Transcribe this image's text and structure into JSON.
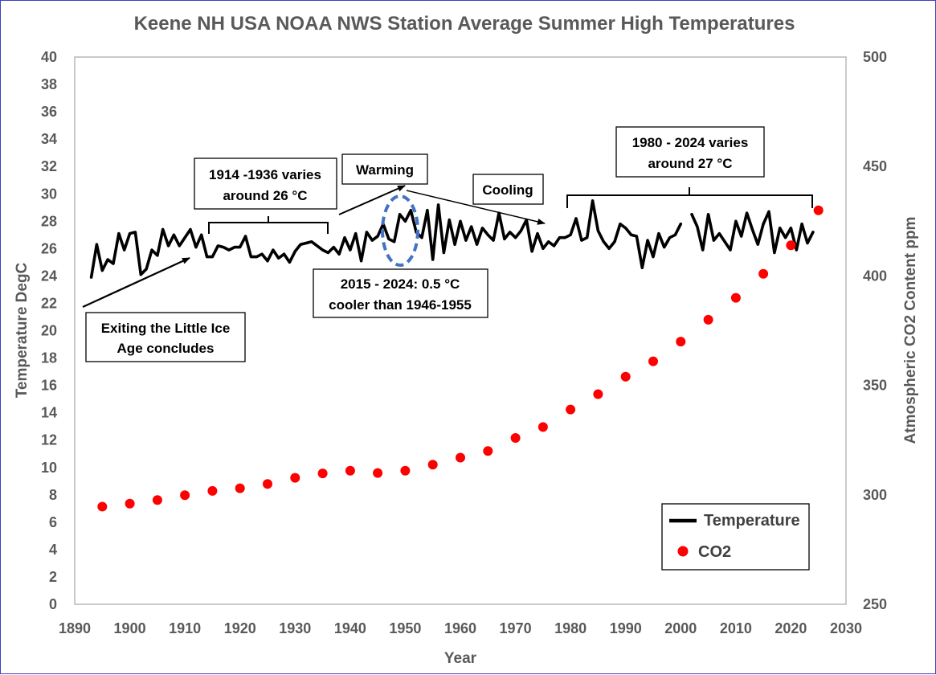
{
  "chart_data": {
    "type": "line+scatter",
    "title": "Keene NH USA NOAA NWS Station Average Summer High Temperatures",
    "xlabel": "Year",
    "ylabel_left": "Temperature DegC",
    "ylabel_right": "Atmospheric CO2 Content ppm",
    "xlim": [
      1890,
      2030
    ],
    "ylim_left": [
      0,
      40
    ],
    "ylim_right": [
      250,
      500
    ],
    "x_ticks": [
      "1890",
      "1900",
      "1910",
      "1920",
      "1930",
      "1940",
      "1950",
      "1960",
      "1970",
      "1980",
      "1990",
      "2000",
      "2010",
      "2020",
      "2030"
    ],
    "y_left_ticks": [
      "0",
      "2",
      "4",
      "6",
      "8",
      "10",
      "12",
      "14",
      "16",
      "18",
      "20",
      "22",
      "24",
      "26",
      "28",
      "30",
      "32",
      "34",
      "36",
      "38",
      "40"
    ],
    "y_right_ticks": [
      "250",
      "300",
      "350",
      "400",
      "450",
      "500"
    ],
    "legend": {
      "temperature_label": "Temperature",
      "co2_label": "CO2",
      "position": "bottom-right"
    },
    "colors": {
      "temperature": "#000000",
      "co2": "#ff0000",
      "axis_text": "#595959",
      "ellipse": "#4472c4"
    },
    "series": [
      {
        "name": "Temperature",
        "segments": [
          {
            "start_year": 1893,
            "values": [
              23.9,
              26.3,
              24.4,
              25.2,
              24.9,
              27.1,
              25.9,
              27.1,
              27.2,
              24.1,
              24.5,
              25.9,
              25.5,
              27.4,
              26.2,
              27.0,
              26.2,
              26.8,
              27.4,
              26.1,
              27.0,
              25.4,
              25.4,
              26.2,
              26.1,
              25.9,
              26.1,
              26.1,
              26.9,
              25.4,
              25.4,
              25.6,
              25.1,
              25.9,
              25.3,
              25.6,
              25.0,
              25.8,
              26.3,
              26.4,
              26.5,
              26.2,
              25.9,
              25.7,
              26.1,
              25.6,
              26.8,
              25.9,
              27.1,
              25.1,
              27.2,
              26.6,
              26.9,
              27.8,
              26.7,
              26.5,
              28.5,
              28.0,
              28.8,
              27.2,
              26.8,
              28.8,
              25.2,
              29.2,
              25.7,
              28.1,
              26.3,
              28.0,
              26.6,
              27.6,
              26.3,
              27.5,
              27.0,
              26.6,
              28.6,
              26.7,
              27.2,
              26.8,
              27.3,
              28.1,
              25.8,
              27.1,
              26.0,
              26.5,
              26.2,
              26.8,
              26.8,
              27.0,
              28.2,
              26.6,
              26.8,
              29.5,
              27.3,
              26.5,
              26.0,
              26.5,
              27.8,
              27.5,
              27.0,
              26.9,
              24.6,
              26.6,
              25.4,
              27.1,
              26.1,
              26.8,
              27.0,
              27.8
            ]
          },
          {
            "start_year": 2002,
            "values": [
              28.5,
              27.6,
              25.9,
              28.5,
              26.6,
              27.1,
              26.5,
              25.9,
              28.0,
              26.9,
              28.6,
              27.4,
              26.3,
              27.8,
              28.7,
              25.7,
              27.5,
              26.8,
              27.5,
              25.9,
              27.8,
              26.4,
              27.2
            ]
          }
        ]
      },
      {
        "name": "CO2",
        "x": [
          1895,
          1900,
          1905,
          1910,
          1915,
          1920,
          1925,
          1930,
          1935,
          1940,
          1945,
          1950,
          1955,
          1960,
          1965,
          1970,
          1975,
          1980,
          1985,
          1990,
          1995,
          2000,
          2005,
          2010,
          2015,
          2020,
          2025
        ],
        "values": [
          294.6,
          296.0,
          297.6,
          299.8,
          301.8,
          303.0,
          305.0,
          307.8,
          309.8,
          311.0,
          310.0,
          311.0,
          313.8,
          317.0,
          320.0,
          326.0,
          331.0,
          339.0,
          346.0,
          354.0,
          361.0,
          370.0,
          380.0,
          390.0,
          401.0,
          414.0,
          430.0
        ]
      }
    ],
    "annotations": {
      "exiting_line1": "Exiting the Little Ice",
      "exiting_line2": "Age concludes",
      "period1914_line1": "1914 -1936 varies",
      "period1914_line2": "around 26 °C",
      "warming": "Warming",
      "cooling": "Cooling",
      "period2015_line1": "2015 - 2024: 0.5 °C",
      "period2015_line2": "cooler than 1946-1955",
      "period1980_line1": "1980 - 2024 varies",
      "period1980_line2": "around 27 °C"
    }
  }
}
